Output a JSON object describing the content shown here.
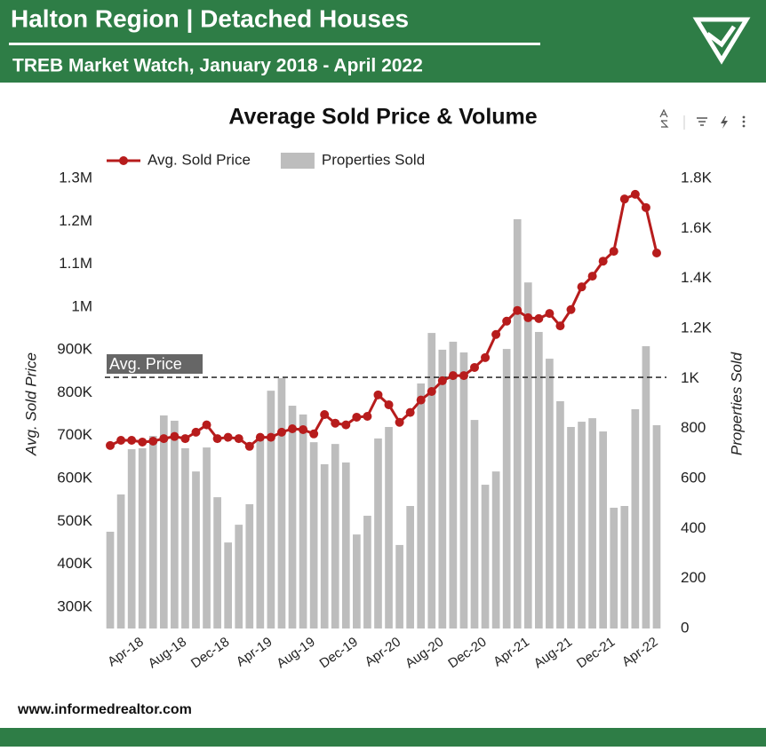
{
  "header": {
    "title": "Halton Region | Detached Houses",
    "subtitle": "TREB Market Watch, January 2018 - April 2022"
  },
  "footer": {
    "url": "www.informedrealtor.com"
  },
  "chart_data": {
    "type": "combo",
    "title": "Average Sold Price & Volume",
    "y_label": "Avg. Sold Price",
    "y2_label": "Properties Sold",
    "categories": [
      null,
      null,
      null,
      "Apr-18",
      null,
      null,
      null,
      "Aug-18",
      null,
      null,
      null,
      "Dec-18",
      null,
      null,
      null,
      "Apr-19",
      null,
      null,
      null,
      "Aug-19",
      null,
      null,
      null,
      "Dec-19",
      null,
      null,
      null,
      "Apr-20",
      null,
      null,
      null,
      "Aug-20",
      null,
      null,
      null,
      "Dec-20",
      null,
      null,
      null,
      "Apr-21",
      null,
      null,
      null,
      "Aug-21",
      null,
      null,
      null,
      "Dec-21",
      null,
      null,
      null,
      "Apr-22"
    ],
    "series": [
      {
        "name": "Avg. Sold Price",
        "type": "line",
        "color": "#b71c1c",
        "values": [
          677000,
          689000,
          689000,
          685000,
          687000,
          693000,
          698000,
          693000,
          708000,
          725000,
          693000,
          696000,
          693000,
          675000,
          696000,
          696000,
          708000,
          716000,
          714000,
          704000,
          749000,
          729000,
          725000,
          743000,
          745000,
          795000,
          772000,
          731000,
          754000,
          783000,
          803000,
          828000,
          840000,
          840000,
          859000,
          882000,
          936000,
          967000,
          992000,
          975000,
          973000,
          985000,
          956000,
          994000,
          1047000,
          1072000,
          1107000,
          1130000,
          1252000,
          1263000,
          1232000,
          1126000
        ]
      },
      {
        "name": "Properties Sold",
        "type": "bar",
        "axis": "y2",
        "color": "#bdbdbd",
        "values": [
          387,
          536,
          717,
          721,
          770,
          852,
          831,
          721,
          628,
          724,
          525,
          344,
          415,
          497,
          756,
          951,
          1001,
          891,
          856,
          745,
          657,
          738,
          664,
          376,
          451,
          760,
          806,
          334,
          490,
          980,
          1182,
          1115,
          1147,
          1104,
          834,
          575,
          628,
          1118,
          1637,
          1384,
          1186,
          1079,
          909,
          806,
          827,
          841,
          788,
          483,
          490,
          877,
          1129,
          813
        ]
      }
    ],
    "ylim": [
      250000,
      1300000
    ],
    "yticks": [
      {
        "value": 300000,
        "label": "300K"
      },
      {
        "value": 400000,
        "label": "400K"
      },
      {
        "value": 500000,
        "label": "500K"
      },
      {
        "value": 600000,
        "label": "600K"
      },
      {
        "value": 700000,
        "label": "700K"
      },
      {
        "value": 800000,
        "label": "800K"
      },
      {
        "value": 900000,
        "label": "900K"
      },
      {
        "value": 1000000,
        "label": "1M"
      },
      {
        "value": 1100000,
        "label": "1.1M"
      },
      {
        "value": 1200000,
        "label": "1.2M"
      },
      {
        "value": 1300000,
        "label": "1.3M"
      }
    ],
    "y2lim": [
      0,
      1800
    ],
    "y2ticks": [
      0,
      200,
      400,
      600,
      800,
      {
        "value": 1000,
        "label": "1K"
      },
      {
        "value": 1200,
        "label": "1.2K"
      },
      {
        "value": 1400,
        "label": "1.4K"
      },
      {
        "value": 1600,
        "label": "1.6K"
      },
      {
        "value": 1800,
        "label": "1.8K"
      }
    ],
    "annotation": {
      "label": "Avg. Price",
      "value": 836000
    },
    "legend": "top-left"
  }
}
